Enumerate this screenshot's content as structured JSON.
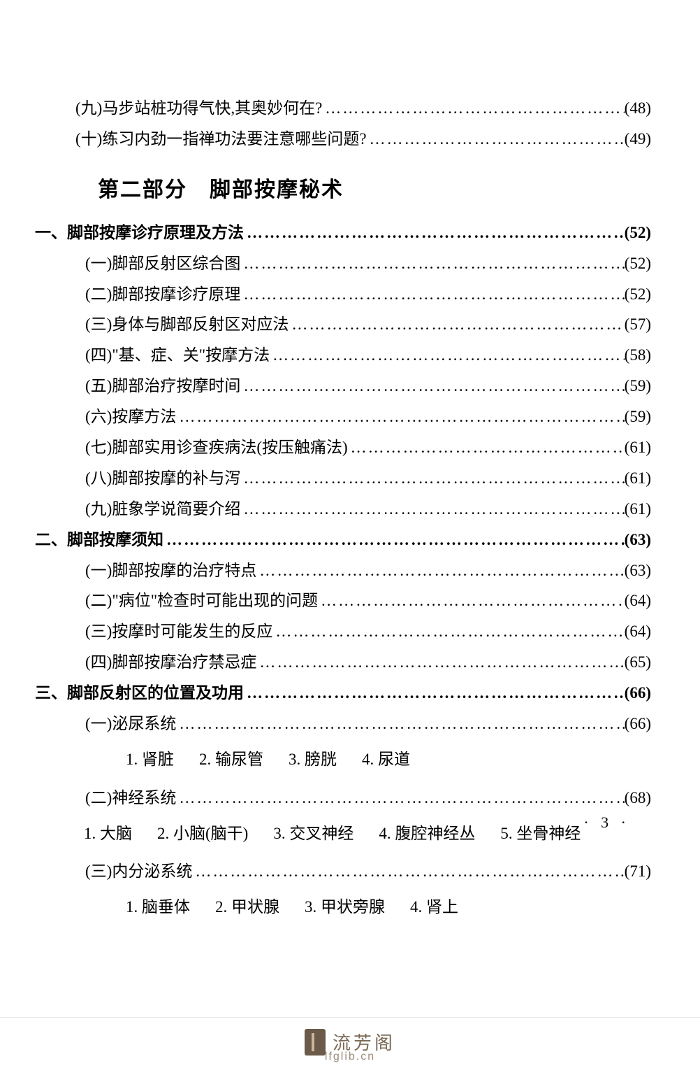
{
  "meta": {
    "pageWidth": 1002,
    "pageHeight": 1524,
    "fontFamily": "SimSun",
    "textColor": "#000000",
    "bgColor": "#ffffff",
    "leaderChar": "…",
    "baseFontSize": 23,
    "titleFontSize": 30,
    "pageNumberLabel": "· 3 ·"
  },
  "footer": {
    "brandCn": "流芳阁",
    "brandUrl": "lfglib.cn",
    "logoColor": "#6b5a4a",
    "brandColor": "#7a6a55"
  },
  "topLines": [
    {
      "indent": 58,
      "label": "(九)马步站桩功得气快,其奥妙何在?",
      "page": "(48)",
      "bold": false
    },
    {
      "indent": 58,
      "label": "(十)练习内劲一指禅功法要注意哪些问题?",
      "page": "(49)",
      "bold": false
    }
  ],
  "sectionTitle": "第二部分　脚部按摩秘术",
  "body": [
    {
      "type": "line",
      "indent": 0,
      "label": "一、脚部按摩诊疗原理及方法",
      "page": "(52)",
      "bold": true
    },
    {
      "type": "line",
      "indent": 72,
      "label": "(一)脚部反射区综合图",
      "page": "(52)",
      "bold": false
    },
    {
      "type": "line",
      "indent": 72,
      "label": "(二)脚部按摩诊疗原理",
      "page": "(52)",
      "bold": false
    },
    {
      "type": "line",
      "indent": 72,
      "label": "(三)身体与脚部反射区对应法",
      "page": "(57)",
      "bold": false
    },
    {
      "type": "line",
      "indent": 72,
      "label": "(四)\"基、症、关\"按摩方法",
      "page": "(58)",
      "bold": false
    },
    {
      "type": "line",
      "indent": 72,
      "label": "(五)脚部治疗按摩时间",
      "page": "(59)",
      "bold": false
    },
    {
      "type": "line",
      "indent": 72,
      "label": "(六)按摩方法",
      "page": "(59)",
      "bold": false
    },
    {
      "type": "line",
      "indent": 72,
      "label": "(七)脚部实用诊查疾病法(按压触痛法)",
      "page": "(61)",
      "bold": false
    },
    {
      "type": "line",
      "indent": 72,
      "label": "(八)脚部按摩的补与泻",
      "page": "(61)",
      "bold": false
    },
    {
      "type": "line",
      "indent": 72,
      "label": "(九)脏象学说简要介绍",
      "page": "(61)",
      "bold": false
    },
    {
      "type": "line",
      "indent": 0,
      "label": "二、脚部按摩须知",
      "page": "(63)",
      "bold": true
    },
    {
      "type": "line",
      "indent": 72,
      "label": "(一)脚部按摩的治疗特点",
      "page": "(63)",
      "bold": false
    },
    {
      "type": "line",
      "indent": 72,
      "label": "(二)\"病位\"检查时可能出现的问题",
      "page": "(64)",
      "bold": false
    },
    {
      "type": "line",
      "indent": 72,
      "label": "(三)按摩时可能发生的反应",
      "page": "(64)",
      "bold": false
    },
    {
      "type": "line",
      "indent": 72,
      "label": "(四)脚部按摩治疗禁忌症",
      "page": "(65)",
      "bold": false
    },
    {
      "type": "line",
      "indent": 0,
      "label": "三、脚部反射区的位置及功用",
      "page": "(66)",
      "bold": true
    },
    {
      "type": "line",
      "indent": 72,
      "label": "(一)泌尿系统",
      "page": "(66)",
      "bold": false
    },
    {
      "type": "inline",
      "items": [
        "1. 肾脏",
        "2. 输尿管",
        "3. 膀胱",
        "4. 尿道"
      ]
    },
    {
      "type": "line",
      "indent": 72,
      "label": "(二)神经系统",
      "page": "(68)",
      "bold": false
    },
    {
      "type": "wrap",
      "items": [
        "1. 大脑",
        "2. 小脑(脑干)",
        "3. 交叉神经",
        "4. 腹腔神经丛",
        "5. 坐骨神经"
      ]
    },
    {
      "type": "line",
      "indent": 72,
      "label": "(三)内分泌系统",
      "page": "(71)",
      "bold": false
    },
    {
      "type": "inline",
      "items": [
        "1. 脑垂体",
        "2. 甲状腺",
        "3. 甲状旁腺",
        "4. 肾上"
      ]
    }
  ]
}
